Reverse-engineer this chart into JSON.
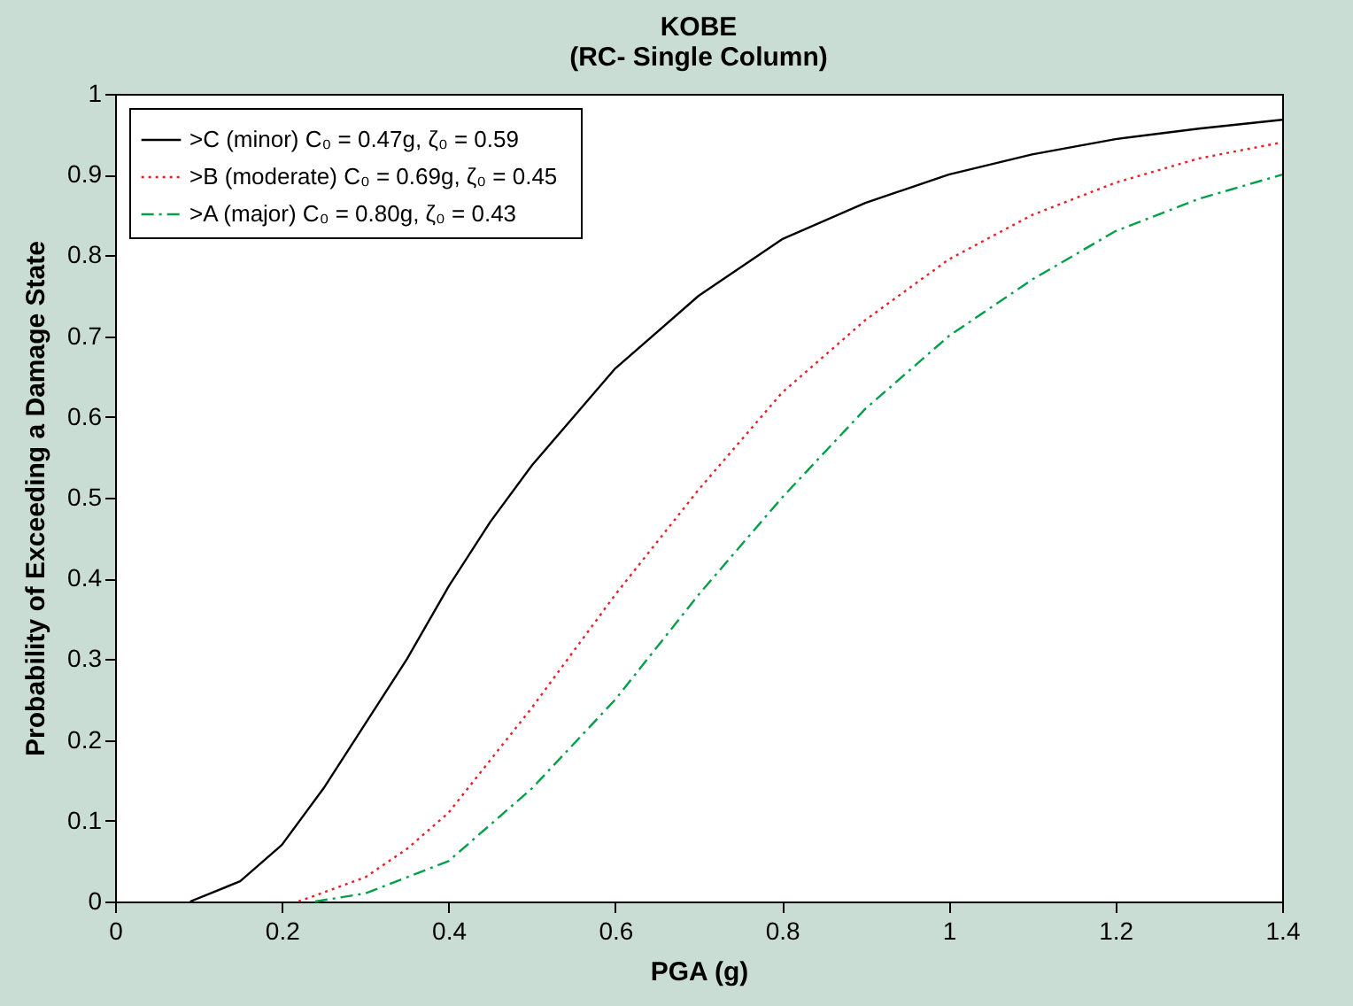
{
  "chart_data": {
    "type": "line",
    "title": "KOBE",
    "subtitle": "(RC- Single Column)",
    "xlabel": "PGA (g)",
    "ylabel": "Probability of Exceeding a Damage State",
    "xlim": [
      0,
      1.4
    ],
    "xticks": [
      0,
      0.2,
      0.4,
      0.6,
      0.8,
      1,
      1.2,
      1.4
    ],
    "ylim": [
      0,
      1
    ],
    "yticks": [
      0,
      0.1,
      0.2,
      0.3,
      0.4,
      0.5,
      0.6,
      0.7,
      0.8,
      0.9,
      1
    ],
    "grid": false,
    "legend": "top left",
    "marker": "none",
    "series": [
      {
        "name": ">C (minor)     C₀ = 0.47g, ζ₀ = 0.59",
        "color": "#000000",
        "line_style": "solid",
        "x": [
          0.09,
          0.15,
          0.2,
          0.25,
          0.3,
          0.35,
          0.4,
          0.45,
          0.5,
          0.6,
          0.7,
          0.8,
          0.9,
          1.0,
          1.1,
          1.2,
          1.3,
          1.4
        ],
        "values": [
          0,
          0.025,
          0.07,
          0.14,
          0.22,
          0.3,
          0.39,
          0.47,
          0.54,
          0.66,
          0.75,
          0.82,
          0.865,
          0.9,
          0.925,
          0.944,
          0.957,
          0.968
        ]
      },
      {
        "name": ">B (moderate)   C₀ = 0.69g, ζ₀ = 0.45",
        "color": "#e8202a",
        "line_style": "dotted",
        "x": [
          0.22,
          0.3,
          0.35,
          0.4,
          0.5,
          0.6,
          0.7,
          0.8,
          0.9,
          1.0,
          1.1,
          1.2,
          1.3,
          1.4
        ],
        "values": [
          0,
          0.03,
          0.065,
          0.11,
          0.24,
          0.38,
          0.51,
          0.63,
          0.72,
          0.795,
          0.85,
          0.89,
          0.92,
          0.94
        ]
      },
      {
        "name": ">A (major)      C₀ = 0.80g, ζ₀ = 0.43",
        "color": "#00a04a",
        "line_style": "dashdot",
        "x": [
          0.24,
          0.3,
          0.4,
          0.5,
          0.6,
          0.7,
          0.8,
          0.9,
          1.0,
          1.1,
          1.2,
          1.3,
          1.4
        ],
        "values": [
          0,
          0.01,
          0.05,
          0.14,
          0.25,
          0.38,
          0.5,
          0.61,
          0.7,
          0.77,
          0.83,
          0.87,
          0.9
        ]
      }
    ]
  }
}
